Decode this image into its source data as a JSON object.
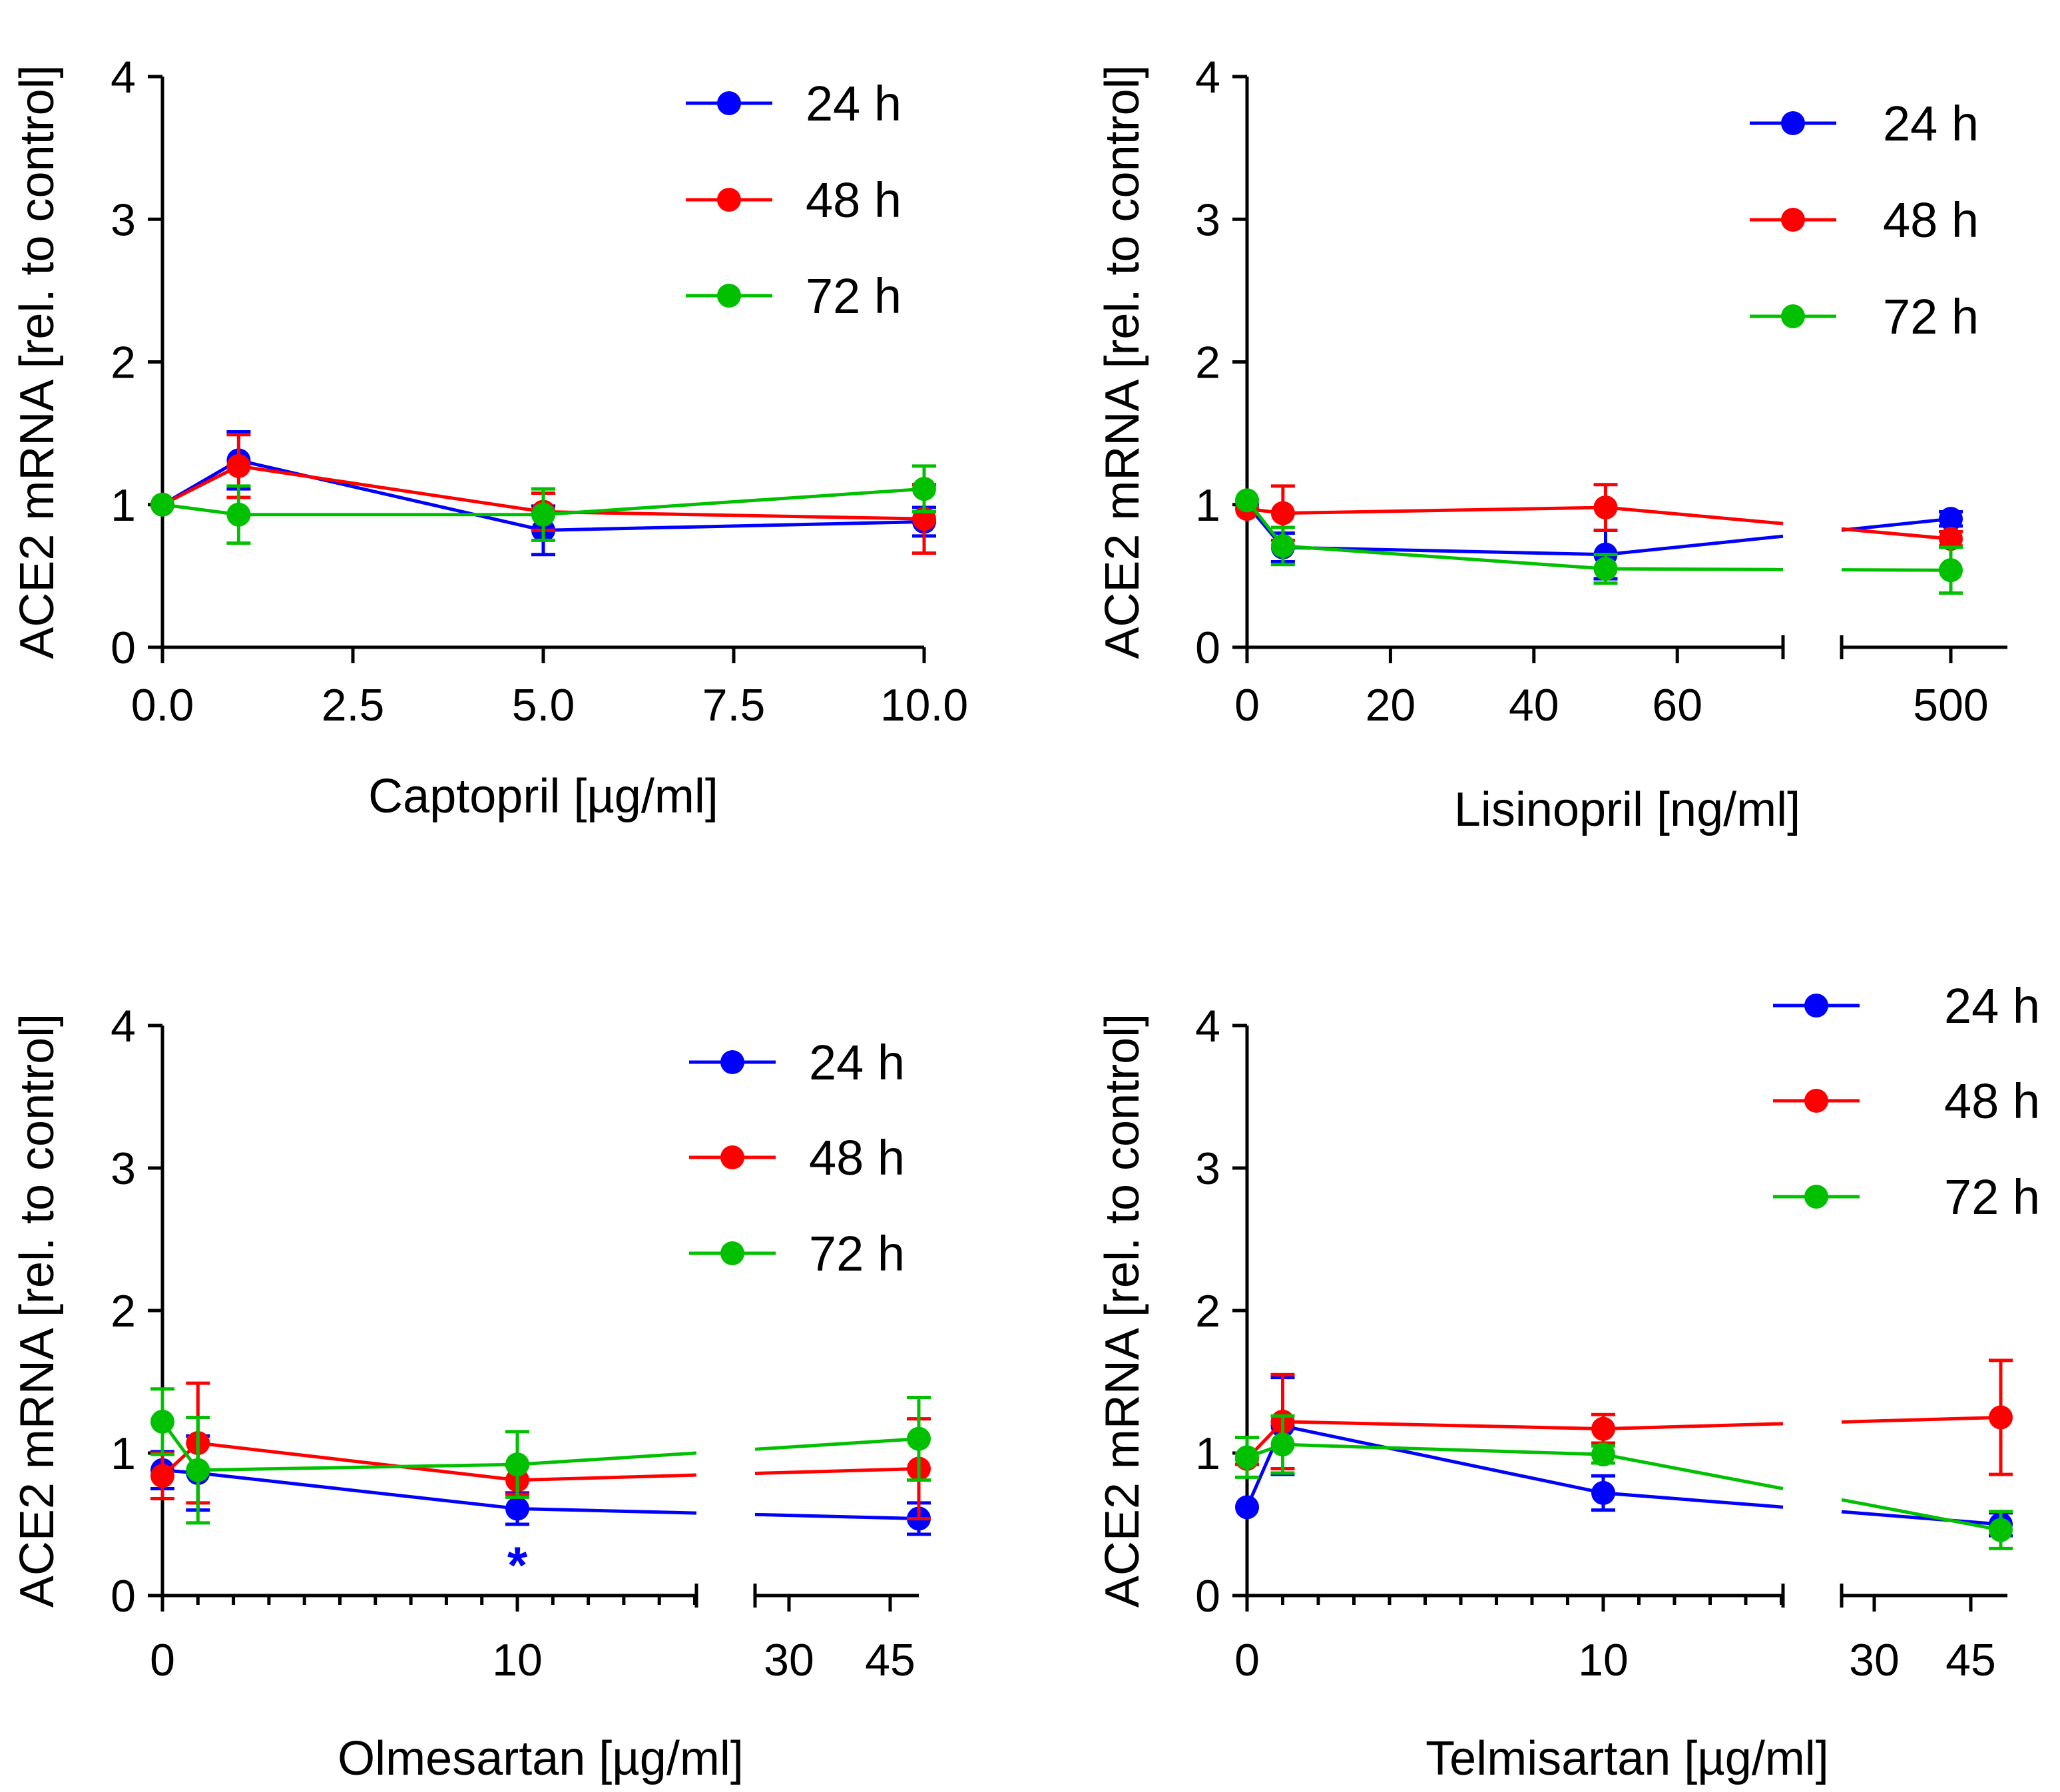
{
  "chart_data": [
    {
      "type": "line",
      "panel": "captopril",
      "xlabel": "Captopril [µg/ml]",
      "ylabel": "ACE2 mRNA [rel. to control]",
      "ylim": [
        0,
        4
      ],
      "yticks": [
        "0",
        "1",
        "2",
        "3",
        "4"
      ],
      "xticks": [
        "0.0",
        "2.5",
        "5.0",
        "7.5",
        "10.0"
      ],
      "x": [
        0,
        1,
        5,
        10
      ],
      "legend": {
        "position": "top-right",
        "entries": [
          "24 h",
          "48 h",
          "72 h"
        ]
      },
      "series": [
        {
          "name": "24 h",
          "color": "#0000ff",
          "values": [
            1.0,
            1.31,
            0.82,
            0.88
          ],
          "errors": [
            0.0,
            0.2,
            0.17,
            0.1
          ]
        },
        {
          "name": "48 h",
          "color": "#ff0000",
          "values": [
            1.0,
            1.27,
            0.95,
            0.9
          ],
          "errors": [
            0.0,
            0.22,
            0.13,
            0.24
          ]
        },
        {
          "name": "72 h",
          "color": "#00c000",
          "values": [
            1.0,
            0.93,
            0.93,
            1.11
          ],
          "errors": [
            0.0,
            0.2,
            0.18,
            0.16
          ]
        }
      ],
      "annotations": []
    },
    {
      "type": "line",
      "panel": "lisinopril",
      "xlabel": "Lisinopril [ng/ml]",
      "ylabel": "ACE2 mRNA [rel. to control]",
      "ylim": [
        0,
        4
      ],
      "yticks": [
        "0",
        "1",
        "2",
        "3",
        "4"
      ],
      "xticks": [
        "0",
        "20",
        "40",
        "60",
        "500"
      ],
      "x": [
        0,
        5,
        50,
        500
      ],
      "legend": {
        "position": "top-right",
        "entries": [
          "24 h",
          "48 h",
          "72 h"
        ]
      },
      "series": [
        {
          "name": "24 h",
          "color": "#0000ff",
          "values": [
            1.0,
            0.7,
            0.65,
            0.9
          ],
          "errors": [
            0.0,
            0.1,
            0.17,
            0.05
          ]
        },
        {
          "name": "48 h",
          "color": "#ff0000",
          "values": [
            0.97,
            0.94,
            0.98,
            0.76
          ],
          "errors": [
            0.0,
            0.19,
            0.16,
            0.05
          ]
        },
        {
          "name": "72 h",
          "color": "#00c000",
          "values": [
            1.03,
            0.71,
            0.55,
            0.54
          ],
          "errors": [
            0.0,
            0.13,
            0.1,
            0.16
          ]
        }
      ],
      "annotations": []
    },
    {
      "type": "line",
      "panel": "olmesartan",
      "xlabel": "Olmesartan [µg/ml]",
      "ylabel": "ACE2 mRNA [rel. to control]",
      "ylim": [
        0,
        4
      ],
      "yticks": [
        "0",
        "1",
        "2",
        "3",
        "4"
      ],
      "xticks": [
        "0",
        "10",
        "30",
        "45"
      ],
      "x": [
        0,
        1,
        10,
        50
      ],
      "legend": {
        "position": "top-right",
        "entries": [
          "24 h",
          "48 h",
          "72 h"
        ]
      },
      "series": [
        {
          "name": "24 h",
          "color": "#0000ff",
          "values": [
            0.88,
            0.86,
            0.61,
            0.54
          ],
          "errors": [
            0.13,
            0.26,
            0.11,
            0.11
          ]
        },
        {
          "name": "48 h",
          "color": "#ff0000",
          "values": [
            0.84,
            1.07,
            0.81,
            0.89
          ],
          "errors": [
            0.16,
            0.42,
            0.1,
            0.35
          ]
        },
        {
          "name": "72 h",
          "color": "#00c000",
          "values": [
            1.22,
            0.88,
            0.92,
            1.1
          ],
          "errors": [
            0.23,
            0.37,
            0.23,
            0.29
          ]
        }
      ],
      "annotations": [
        {
          "text": "*",
          "series": "24 h",
          "x": 10,
          "color": "#0000ff"
        }
      ]
    },
    {
      "type": "line",
      "panel": "telmisartan",
      "xlabel": "Telmisartan [µg/ml]",
      "ylabel": "ACE2 mRNA [rel. to control]",
      "ylim": [
        0,
        4
      ],
      "yticks": [
        "0",
        "1",
        "2",
        "3",
        "4"
      ],
      "xticks": [
        "0",
        "10",
        "30",
        "45"
      ],
      "x": [
        0,
        1,
        10,
        50
      ],
      "legend": {
        "position": "top-right",
        "entries": [
          "24 h",
          "48 h",
          "72 h"
        ]
      },
      "series": [
        {
          "name": "24 h",
          "color": "#0000ff",
          "values": [
            0.62,
            1.19,
            0.72,
            0.5
          ],
          "errors": [
            0.0,
            0.34,
            0.12,
            0.08
          ]
        },
        {
          "name": "48 h",
          "color": "#ff0000",
          "values": [
            0.96,
            1.22,
            1.17,
            1.25
          ],
          "errors": [
            0.04,
            0.33,
            0.1,
            0.4
          ]
        },
        {
          "name": "72 h",
          "color": "#00c000",
          "values": [
            0.97,
            1.06,
            0.99,
            0.46
          ],
          "errors": [
            0.14,
            0.2,
            0.06,
            0.13
          ]
        }
      ],
      "annotations": []
    }
  ]
}
